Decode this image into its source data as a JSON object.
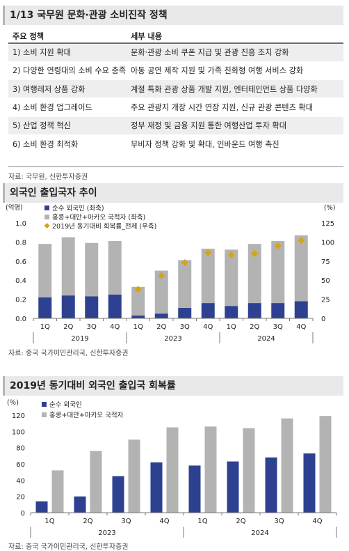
{
  "section1": {
    "title": "1/13 국무원 문화·관광 소비진작 정책",
    "col_policy": "주요 정책",
    "col_detail": "세부 내용",
    "rows": [
      {
        "policy": "1) 소비 지원 확대",
        "detail": "문화·관광 소비 쿠폰 지급 및 관광 진흥 조치 강화"
      },
      {
        "policy": "2) 다양한 연령대의 소비 수요 충족",
        "detail": "아동 공연 제작 지원 및 가족 친화형 여행 서비스 강화"
      },
      {
        "policy": "3) 여행레저 상품 강화",
        "detail": "계절 특화 관광 상품 개발 지원, 엔터테인먼트 상품 다양화"
      },
      {
        "policy": "4) 소비 환경 업그레이드",
        "detail": "주요 관광지 개장 시간 연장 지원, 신규 관광 콘텐츠 확대"
      },
      {
        "policy": "5) 산업 정책 혁신",
        "detail": "정부 재정 및 금융 지원 통한 여행산업 투자 확대"
      },
      {
        "policy": "6) 소비 환경 최적화",
        "detail": "무비자 정책 강화 및 확대, 인바운드 여행 촉진"
      }
    ],
    "source": "자료: 국무원, 신한투자증권"
  },
  "section2": {
    "title": "외국인 출입국자 추이",
    "source": "자료: 중국 국가이민관리국, 신한투자증권"
  },
  "section3": {
    "title": "2019년 동기대비 외국인 출입국 회복률",
    "source": "자료: 중국 국가이민관리국, 신한투자증권"
  },
  "colors": {
    "navy": "#2e4191",
    "gray": "#b3b3b3",
    "gold": "#d4a514"
  },
  "chart_data": [
    {
      "type": "bar",
      "stacked": true,
      "title": "외국인 출입국자 추이",
      "categories": [
        "1Q",
        "2Q",
        "3Q",
        "4Q",
        "1Q",
        "2Q",
        "3Q",
        "4Q",
        "1Q",
        "2Q",
        "3Q",
        "4Q"
      ],
      "groups": [
        {
          "label": "2019",
          "count": 4
        },
        {
          "label": "2023",
          "count": 4
        },
        {
          "label": "2024",
          "count": 4
        }
      ],
      "left_unit": "(억명)",
      "right_unit": "(%)",
      "ylim": [
        0,
        1.0
      ],
      "ylim_right": [
        0,
        125
      ],
      "yticks": [
        "0.0",
        "0.2",
        "0.4",
        "0.6",
        "0.8",
        "1.0"
      ],
      "yticks_right": [
        "0",
        "25",
        "50",
        "75",
        "100",
        "125"
      ],
      "series": [
        {
          "name": "순수 외국인 (좌축)",
          "axis": "left",
          "values": [
            0.22,
            0.24,
            0.23,
            0.25,
            0.03,
            0.05,
            0.11,
            0.16,
            0.13,
            0.16,
            0.16,
            0.18
          ]
        },
        {
          "name": "홍콩+대만+마카오 국적자 (좌축)",
          "axis": "left",
          "values": [
            0.56,
            0.61,
            0.56,
            0.56,
            0.3,
            0.45,
            0.5,
            0.57,
            0.59,
            0.62,
            0.65,
            0.69
          ]
        },
        {
          "name": "2019년 동기대비 회복률_전체 (우축)",
          "axis": "right",
          "type": "scatter",
          "values": [
            null,
            null,
            null,
            null,
            38,
            56,
            73,
            86,
            83,
            85,
            95,
            102
          ]
        }
      ]
    },
    {
      "type": "bar",
      "title": "2019년 동기대비 외국인 출입국 회복률",
      "categories": [
        "1Q",
        "2Q",
        "3Q",
        "4Q",
        "1Q",
        "2Q",
        "3Q",
        "4Q"
      ],
      "groups": [
        {
          "label": "2023",
          "count": 4
        },
        {
          "label": "2024",
          "count": 4
        }
      ],
      "y_unit": "(％)",
      "ylim": [
        0,
        120
      ],
      "yticks": [
        "0",
        "20",
        "40",
        "60",
        "80",
        "100",
        "120"
      ],
      "series": [
        {
          "name": "순수 외국인",
          "values": [
            14,
            20,
            45,
            62,
            58,
            63,
            68,
            73
          ]
        },
        {
          "name": "홍콩+대만+마카오  국적자",
          "values": [
            52,
            76,
            90,
            105,
            106,
            104,
            116,
            119
          ]
        }
      ]
    }
  ]
}
